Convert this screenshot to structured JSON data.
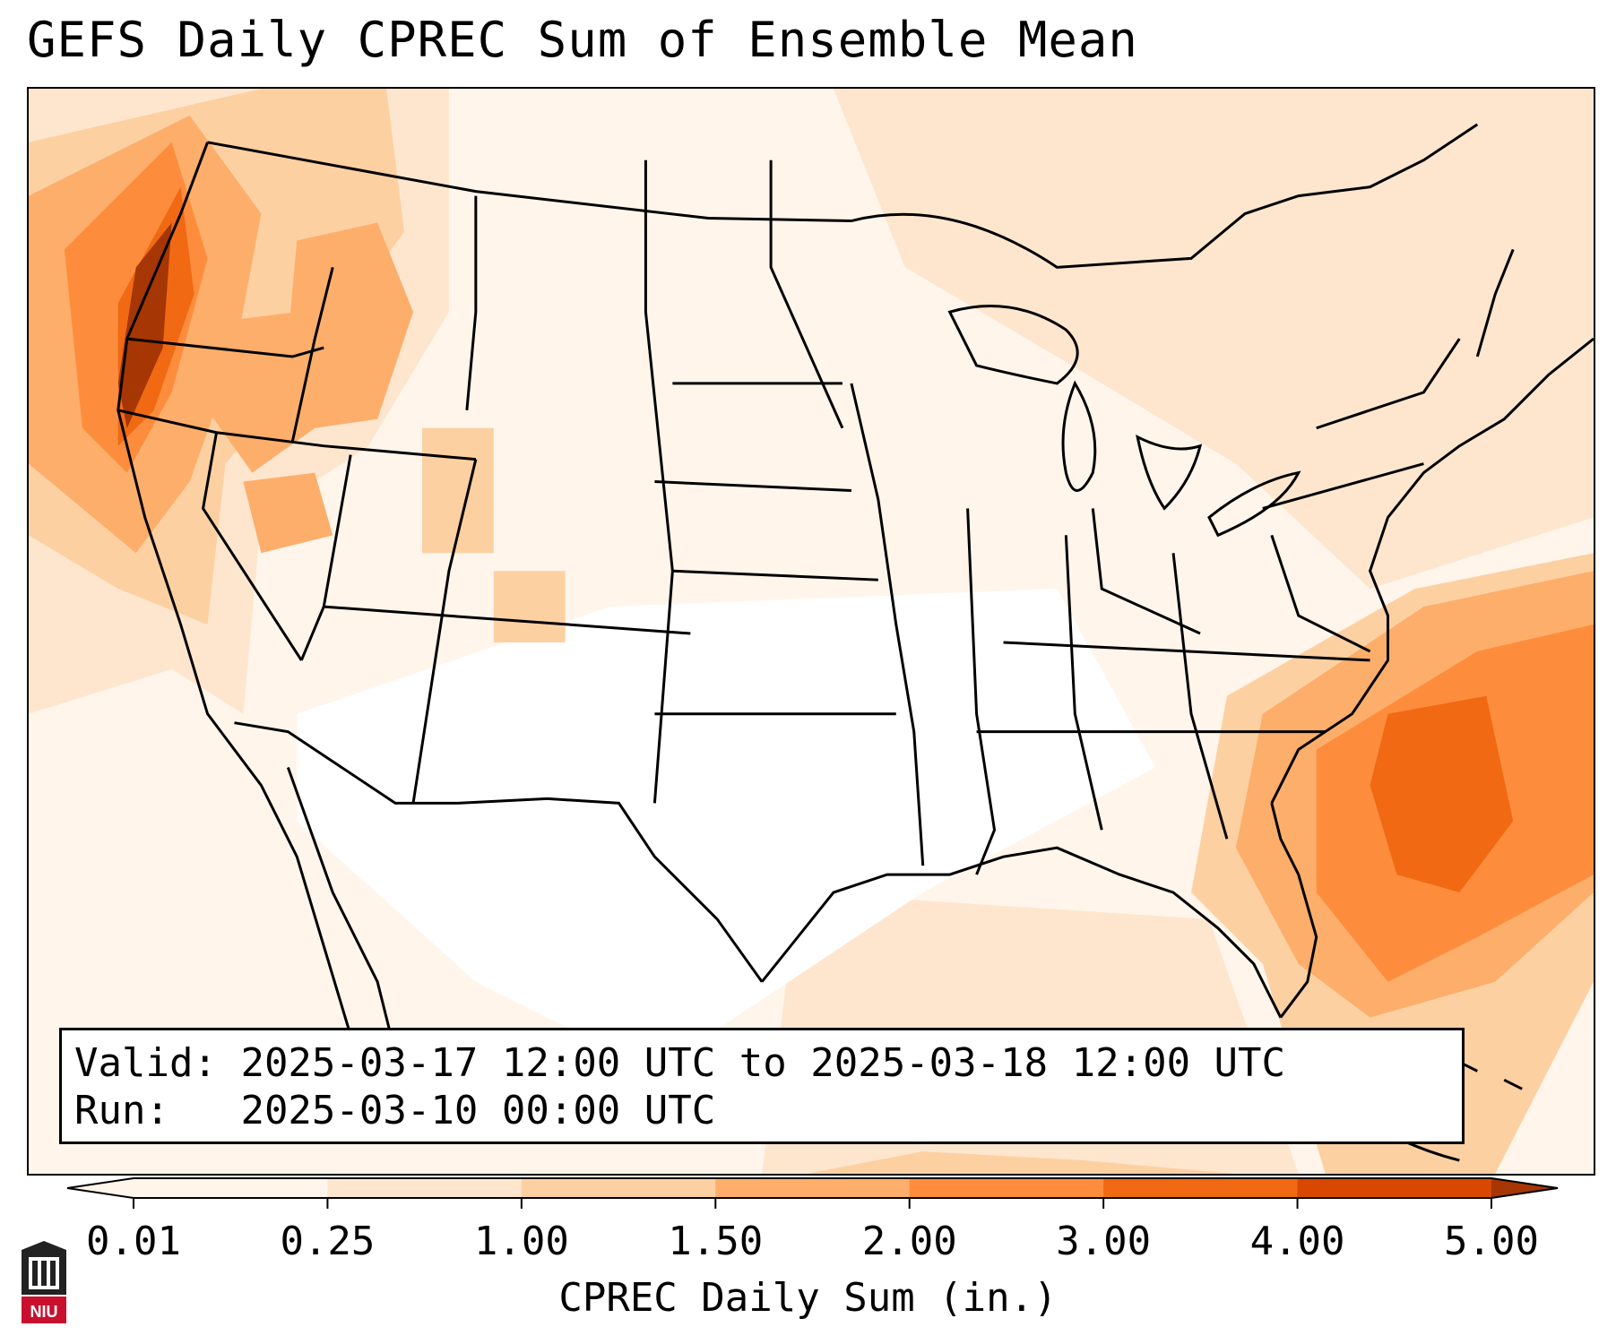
{
  "title": "GEFS Daily CPREC Sum of Ensemble Mean",
  "info": {
    "valid_label": "Valid:",
    "valid_value": "2025-03-17 12:00 UTC to 2025-03-18 12:00 UTC",
    "run_label": "Run:",
    "run_value": "2025-03-10 00:00 UTC"
  },
  "colorbar": {
    "label": "CPREC Daily Sum (in.)",
    "ticks": [
      "0.01",
      "0.25",
      "1.00",
      "1.50",
      "2.00",
      "3.00",
      "4.00",
      "5.00"
    ],
    "colors": [
      "#fff5eb",
      "#fee6ce",
      "#fdd0a2",
      "#fdae6b",
      "#fd8d3c",
      "#f16913",
      "#d94801",
      "#a63603"
    ],
    "extend": "both"
  },
  "logo": {
    "text": "NIU"
  },
  "colors": {
    "level_low": "#fff5eb",
    "level_light": "#fee6ce",
    "level_mid": "#fdd0a2",
    "level_orange": "#fdae6b",
    "level_strong": "#fd8d3c",
    "level_heavy": "#f16913",
    "level_max": "#d94801",
    "level_extreme": "#8c2d04"
  }
}
